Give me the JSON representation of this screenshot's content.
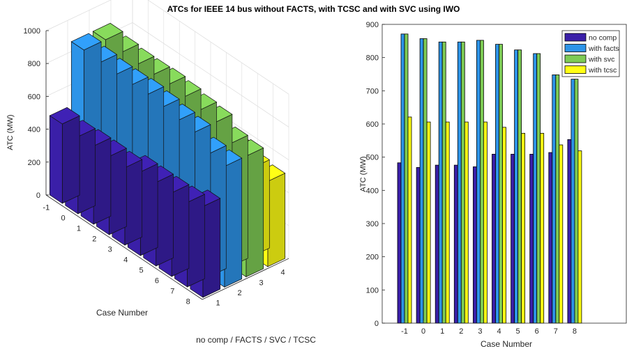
{
  "title": "ATCs for IEEE 14 bus without FACTS, with TCSC and with SVC using IWO",
  "colors": {
    "no_comp": "#3a1fa8",
    "with_facts": "#2d94e8",
    "with_svc": "#7ecb55",
    "with_tcsc": "#ffff14"
  },
  "chart_data": [
    {
      "id": "left-3d",
      "type": "bar",
      "subtype": "3d",
      "xlabel": "Case Number",
      "ylabel": "no comp / FACTS / SVC / TCSC",
      "zlabel": "ATC (MW)",
      "x_ticks": [
        "-1",
        "0",
        "1",
        "2",
        "3",
        "4",
        "5",
        "6",
        "7",
        "8"
      ],
      "y_ticks": [
        "1",
        "2",
        "3",
        "4"
      ],
      "z_ticks": [
        "0",
        "200",
        "400",
        "600",
        "800",
        "1000"
      ],
      "zlim": [
        0,
        1000
      ],
      "grid": true
    },
    {
      "id": "right-2d",
      "type": "bar",
      "categories": [
        "-1",
        "0",
        "1",
        "2",
        "3",
        "4",
        "5",
        "6",
        "7",
        "8"
      ],
      "series": [
        {
          "name": "no comp",
          "values": [
            483,
            469,
            476,
            476,
            471,
            509,
            509,
            509,
            514,
            553
          ]
        },
        {
          "name": "with facts",
          "values": [
            871,
            857,
            847,
            847,
            852,
            840,
            823,
            812,
            748,
            735
          ]
        },
        {
          "name": "with svc",
          "values": [
            871,
            857,
            847,
            847,
            852,
            840,
            823,
            812,
            748,
            735
          ]
        },
        {
          "name": "with tcsc",
          "values": [
            621,
            606,
            606,
            606,
            606,
            590,
            572,
            572,
            537,
            519
          ]
        }
      ],
      "xlabel": "Case Number",
      "ylabel": "ATC (MW)",
      "ylim": [
        0,
        900
      ],
      "y_ticks": [
        "0",
        "100",
        "200",
        "300",
        "400",
        "500",
        "600",
        "700",
        "800",
        "900"
      ],
      "legend": "top-right",
      "grid": false
    }
  ]
}
